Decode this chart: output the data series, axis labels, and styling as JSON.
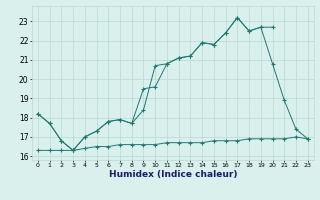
{
  "xlabel": "Humidex (Indice chaleur)",
  "x": [
    0,
    1,
    2,
    3,
    4,
    5,
    6,
    7,
    8,
    9,
    10,
    11,
    12,
    13,
    14,
    15,
    16,
    17,
    18,
    19,
    20,
    21,
    22,
    23
  ],
  "line1": [
    18.2,
    17.7,
    16.8,
    16.3,
    17.0,
    17.3,
    17.8,
    17.9,
    17.7,
    18.4,
    20.7,
    20.8,
    21.1,
    21.2,
    21.9,
    21.8,
    22.4,
    23.2,
    22.5,
    22.7,
    20.8,
    18.9,
    17.4,
    16.9
  ],
  "line2": [
    18.2,
    17.7,
    16.8,
    16.3,
    17.0,
    17.3,
    17.8,
    17.9,
    17.7,
    19.5,
    19.6,
    20.8,
    21.1,
    21.2,
    21.9,
    21.8,
    22.4,
    23.2,
    22.5,
    22.7,
    22.7,
    null,
    null,
    null
  ],
  "line3": [
    16.3,
    16.3,
    16.3,
    16.3,
    16.4,
    16.5,
    16.5,
    16.6,
    16.6,
    16.6,
    16.6,
    16.7,
    16.7,
    16.7,
    16.7,
    16.8,
    16.8,
    16.8,
    16.9,
    16.9,
    16.9,
    16.9,
    17.0,
    16.9
  ],
  "color": "#1b7b70",
  "bg_color": "#daf0ed",
  "grid_color": "#b8d8d4",
  "ylim": [
    15.8,
    23.8
  ],
  "xlim": [
    -0.5,
    23.5
  ],
  "yticks": [
    16,
    17,
    18,
    19,
    20,
    21,
    22,
    23
  ],
  "xticks": [
    0,
    1,
    2,
    3,
    4,
    5,
    6,
    7,
    8,
    9,
    10,
    11,
    12,
    13,
    14,
    15,
    16,
    17,
    18,
    19,
    20,
    21,
    22,
    23
  ]
}
